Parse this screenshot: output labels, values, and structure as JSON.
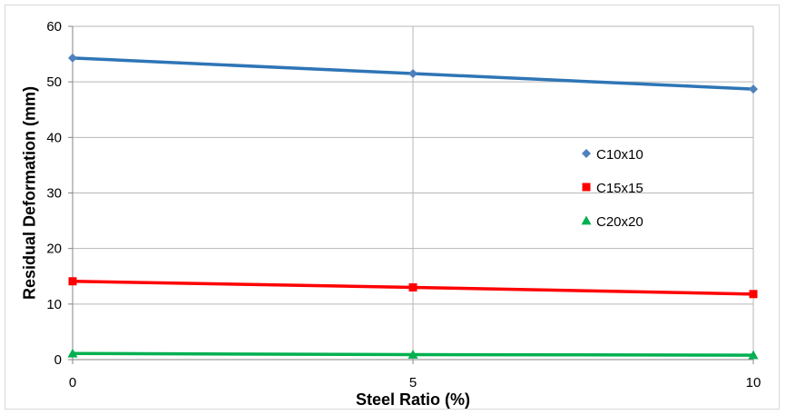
{
  "chart_data": {
    "type": "line",
    "title": "",
    "xlabel": "Steel Ratio (%)",
    "ylabel": "Residual Deformation (mm)",
    "x": [
      0,
      5,
      10
    ],
    "xlim": [
      0,
      10
    ],
    "ylim": [
      0,
      60
    ],
    "xticks": [
      "0",
      "5",
      "10"
    ],
    "yticks": [
      "0",
      "10",
      "20",
      "30",
      "40",
      "50",
      "60"
    ],
    "grid": true,
    "legend_position": "center-right",
    "series": [
      {
        "name": "C10x10",
        "values": [
          54.3,
          51.5,
          48.7
        ],
        "color": "#2e75b6",
        "marker": "diamond",
        "marker_color": "#4f81bd"
      },
      {
        "name": "C15x15",
        "values": [
          14.1,
          13.0,
          11.8
        ],
        "color": "#ff0000",
        "marker": "square",
        "marker_color": "#ff0000"
      },
      {
        "name": "C20x20",
        "values": [
          1.1,
          0.9,
          0.8
        ],
        "color": "#00b050",
        "marker": "triangle",
        "marker_color": "#00b050"
      }
    ]
  }
}
